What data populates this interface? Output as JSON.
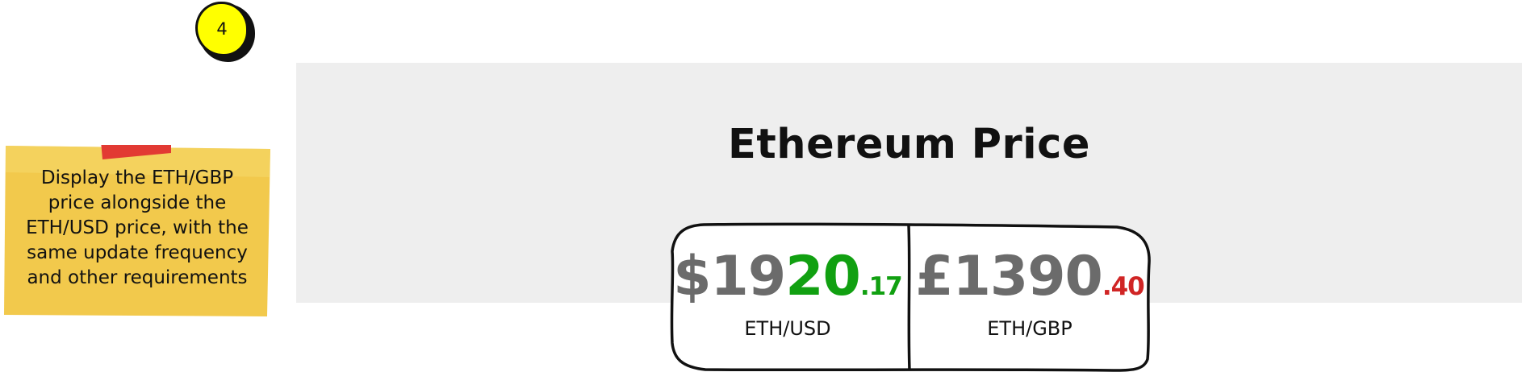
{
  "step_badge": {
    "number": "4",
    "color": "#ffff00"
  },
  "sticky_note": {
    "lines": [
      "Display the ETH/GBP",
      "price alongside the",
      "ETH/USD price, with the",
      "same update frequency",
      "and other requirements"
    ],
    "note_color": "#f2c94c",
    "tape_color": "#e23a33"
  },
  "header": {
    "title": "Ethereum Price"
  },
  "quotes": {
    "usd": {
      "price_lead": "$19",
      "price_changed": "20",
      "price_cents": ".17",
      "pair": "ETH/USD",
      "change_color": "#11a011"
    },
    "gbp": {
      "price_lead": "£1390",
      "price_cents": ".40",
      "pair": "ETH/GBP",
      "change_color": "#d02525"
    }
  }
}
